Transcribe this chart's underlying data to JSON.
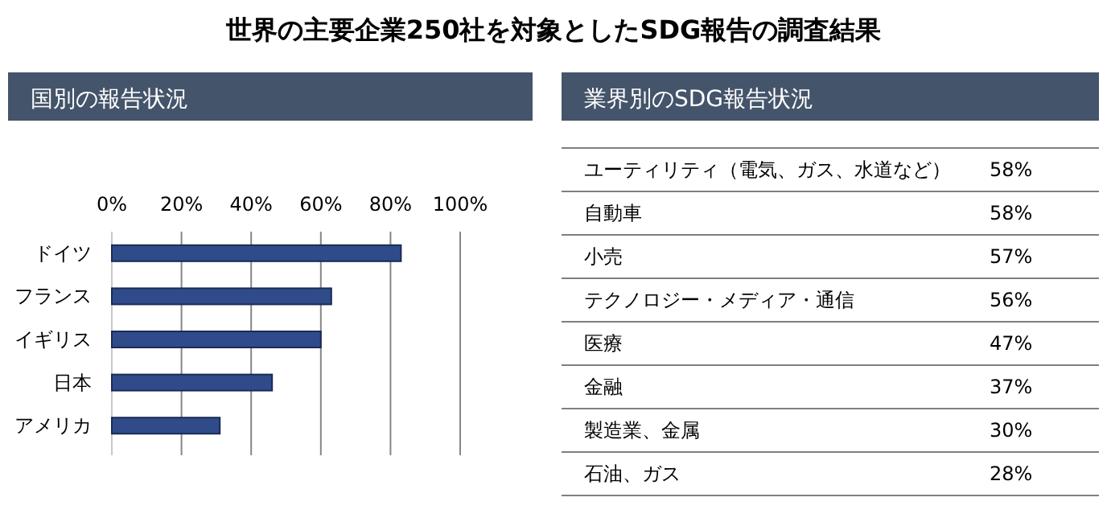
{
  "chart_data": [
    {
      "type": "bar",
      "title": "世界の主要企業250社を対象としたSDG報告の調査結果",
      "subtitle": "国別の報告状況",
      "orientation": "horizontal",
      "categories": [
        "ドイツ",
        "フランス",
        "イギリス",
        "日本",
        "アメリカ"
      ],
      "values": [
        83,
        63,
        60,
        46,
        31
      ],
      "color": "#2f4b8a",
      "xlim": [
        0,
        100
      ],
      "xticks": [
        {
          "value": 0,
          "label": "0%"
        },
        {
          "value": 20,
          "label": "20%"
        },
        {
          "value": 40,
          "label": "40%"
        },
        {
          "value": 60,
          "label": "60%"
        },
        {
          "value": 80,
          "label": "80%"
        },
        {
          "value": 100,
          "label": "100%"
        }
      ],
      "grid": "x"
    },
    {
      "type": "other",
      "title": "業界別のSDG報告状況",
      "categories": [
        "ユーティリティ（電気、ガス、水道など）",
        "自動車",
        "小売",
        "テクノロジー・メディア・通信",
        "医療",
        "金融",
        "製造業、金属",
        "石油、ガス"
      ],
      "values": [
        58,
        58,
        57,
        56,
        47,
        37,
        30,
        28
      ],
      "value_labels": [
        "58%",
        "58%",
        "57%",
        "56%",
        "47%",
        "37%",
        "30%",
        "28%"
      ]
    }
  ]
}
